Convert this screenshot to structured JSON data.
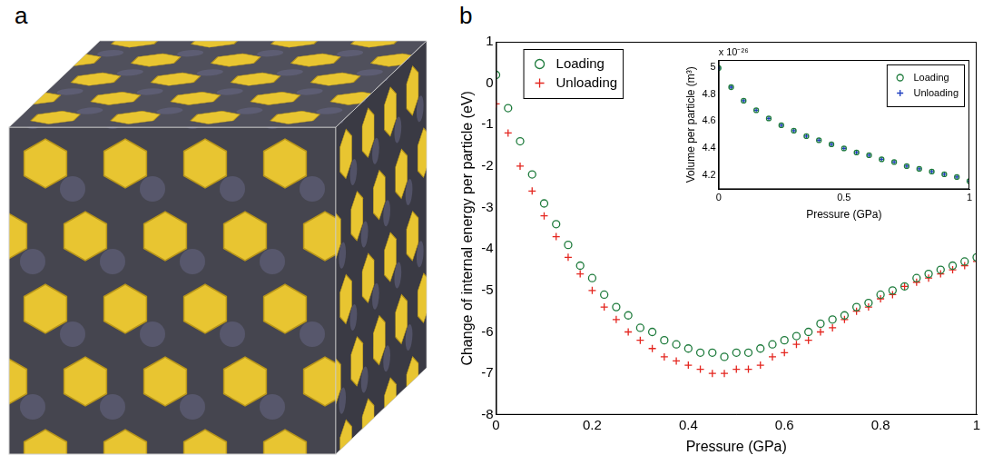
{
  "panel_labels": [
    "a",
    "b"
  ],
  "chart_data": [
    {
      "type": "scatter",
      "xlabel": "Pressure (GPa)",
      "ylabel": "Change of internal energy per particle (eV)",
      "xlim": [
        0,
        1
      ],
      "xticks": [
        0,
        0.2,
        0.4,
        0.6,
        0.8,
        1
      ],
      "ylim": [
        -8,
        1
      ],
      "yticks": [
        -8,
        -7,
        -6,
        -5,
        -4,
        -3,
        -2,
        -1,
        0,
        1
      ],
      "grid": false,
      "legend": "upper left",
      "x": [
        0,
        0.025,
        0.05,
        0.075,
        0.1,
        0.125,
        0.15,
        0.175,
        0.2,
        0.225,
        0.25,
        0.275,
        0.3,
        0.325,
        0.35,
        0.375,
        0.4,
        0.425,
        0.45,
        0.475,
        0.5,
        0.525,
        0.55,
        0.575,
        0.6,
        0.625,
        0.65,
        0.675,
        0.7,
        0.725,
        0.75,
        0.775,
        0.8,
        0.825,
        0.85,
        0.875,
        0.9,
        0.925,
        0.95,
        0.975,
        1
      ],
      "series": [
        {
          "name": "Loading",
          "color": "#1e7b3c",
          "marker": "circle",
          "values": [
            0.2,
            -0.6,
            -1.4,
            -2.2,
            -2.9,
            -3.4,
            -3.9,
            -4.4,
            -4.7,
            -5.1,
            -5.4,
            -5.6,
            -5.9,
            -6.0,
            -6.2,
            -6.3,
            -6.4,
            -6.5,
            -6.5,
            -6.6,
            -6.5,
            -6.5,
            -6.4,
            -6.3,
            -6.2,
            -6.1,
            -6.0,
            -5.8,
            -5.7,
            -5.6,
            -5.4,
            -5.3,
            -5.1,
            -5.0,
            -4.9,
            -4.7,
            -4.6,
            -4.5,
            -4.4,
            -4.3,
            -4.2
          ]
        },
        {
          "name": "Unloading",
          "color": "#e4261f",
          "marker": "plus",
          "values": [
            -0.5,
            -1.2,
            -2.0,
            -2.6,
            -3.2,
            -3.7,
            -4.2,
            -4.6,
            -5.0,
            -5.4,
            -5.7,
            -6.0,
            -6.2,
            -6.4,
            -6.6,
            -6.7,
            -6.8,
            -6.9,
            -7.0,
            -7.0,
            -6.9,
            -6.9,
            -6.8,
            -6.6,
            -6.5,
            -6.3,
            -6.2,
            -6.0,
            -5.9,
            -5.7,
            -5.5,
            -5.4,
            -5.2,
            -5.1,
            -4.9,
            -4.8,
            -4.7,
            -4.6,
            -4.5,
            -4.4,
            -4.3
          ]
        }
      ]
    },
    {
      "type": "scatter",
      "xlabel": "Pressure (GPa)",
      "ylabel": "Volume per particle (m³)",
      "axis_multiplier": "x 10⁻²⁶",
      "xlim": [
        0,
        1
      ],
      "xticks": [
        0,
        0.5,
        1
      ],
      "ylim": [
        4.1,
        5.05
      ],
      "yticks": [
        4.2,
        4.4,
        4.6,
        4.8,
        5
      ],
      "grid": false,
      "legend": "upper right",
      "x": [
        0,
        0.05,
        0.1,
        0.15,
        0.2,
        0.25,
        0.3,
        0.35,
        0.4,
        0.45,
        0.5,
        0.55,
        0.6,
        0.65,
        0.7,
        0.75,
        0.8,
        0.85,
        0.9,
        0.95,
        1
      ],
      "series": [
        {
          "name": "Loading",
          "color": "#1e7b3c",
          "marker": "circle",
          "values": [
            4.99,
            4.85,
            4.75,
            4.68,
            4.62,
            4.57,
            4.53,
            4.49,
            4.46,
            4.43,
            4.4,
            4.37,
            4.35,
            4.32,
            4.3,
            4.27,
            4.25,
            4.23,
            4.21,
            4.19,
            4.16
          ]
        },
        {
          "name": "Unloading",
          "color": "#1f3fc0",
          "marker": "plus",
          "values": [
            4.99,
            4.85,
            4.75,
            4.68,
            4.62,
            4.57,
            4.53,
            4.49,
            4.46,
            4.43,
            4.4,
            4.37,
            4.35,
            4.32,
            4.3,
            4.27,
            4.25,
            4.23,
            4.21,
            4.19,
            4.16
          ]
        }
      ]
    }
  ]
}
